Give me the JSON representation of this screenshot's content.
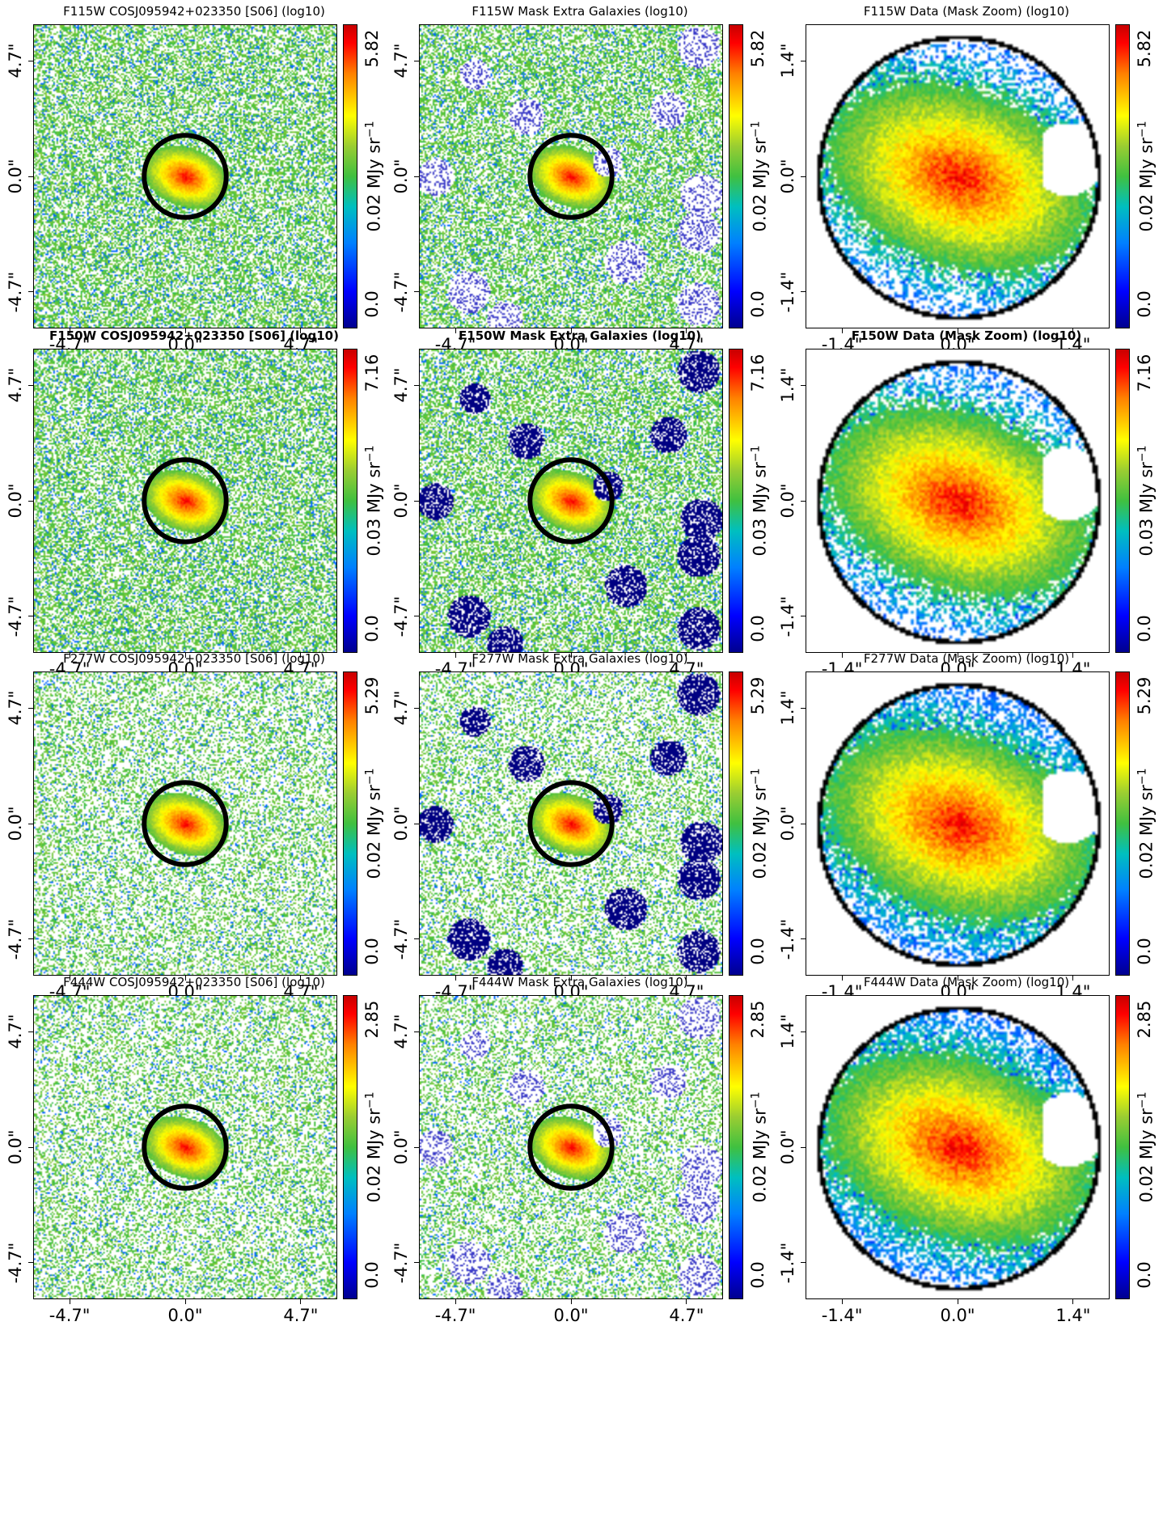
{
  "unit_label": "MJy sr",
  "unit_exponent": "−1",
  "rows": [
    {
      "band": "F115W",
      "bold": false,
      "seed": 11,
      "cbar_min": "0.0",
      "cbar_mid": "0.02",
      "cbar_max": "5.82",
      "panels": [
        {
          "title": "F115W COSJ095942+023350 [S06] (log10)",
          "ticks": [
            "-4.7\"",
            "0.0\"",
            "4.7\""
          ]
        },
        {
          "title": "F115W Mask Extra Galaxies (log10)",
          "ticks": [
            "-4.7\"",
            "0.0\"",
            "4.7\""
          ]
        },
        {
          "title": "F115W Data (Mask Zoom) (log10)",
          "ticks": [
            "-1.4\"",
            "0.0\"",
            "1.4\""
          ]
        }
      ]
    },
    {
      "band": "F150W",
      "bold": true,
      "seed": 23,
      "cbar_min": "0.0",
      "cbar_mid": "0.03",
      "cbar_max": "7.16",
      "panels": [
        {
          "title": "F150W COSJ095942+023350 [S06] (log10)",
          "ticks": [
            "-4.7\"",
            "0.0\"",
            "4.7\""
          ]
        },
        {
          "title": "F150W Mask Extra Galaxies (log10)",
          "ticks": [
            "-4.7\"",
            "0.0\"",
            "4.7\""
          ]
        },
        {
          "title": "F150W Data (Mask Zoom) (log10)",
          "ticks": [
            "-1.4\"",
            "0.0\"",
            "1.4\""
          ]
        }
      ]
    },
    {
      "band": "F277W",
      "bold": false,
      "seed": 37,
      "cbar_min": "0.0",
      "cbar_mid": "0.02",
      "cbar_max": "5.29",
      "panels": [
        {
          "title": "F277W COSJ095942+023350 [S06] (log10)",
          "ticks": [
            "-4.7\"",
            "0.0\"",
            "4.7\""
          ]
        },
        {
          "title": "F277W Mask Extra Galaxies (log10)",
          "ticks": [
            "-4.7\"",
            "0.0\"",
            "4.7\""
          ]
        },
        {
          "title": "F277W Data (Mask Zoom) (log10)",
          "ticks": [
            "-1.4\"",
            "0.0\"",
            "1.4\""
          ]
        }
      ]
    },
    {
      "band": "F444W",
      "bold": false,
      "seed": 53,
      "cbar_min": "0.0",
      "cbar_mid": "0.02",
      "cbar_max": "2.85",
      "panels": [
        {
          "title": "F444W COSJ095942+023350 [S06] (log10)",
          "ticks": [
            "-4.7\"",
            "0.0\"",
            "4.7\""
          ]
        },
        {
          "title": "F444W Mask Extra Galaxies (log10)",
          "ticks": [
            "-4.7\"",
            "0.0\"",
            "4.7\""
          ]
        },
        {
          "title": "F444W Data (Mask Zoom) (log10)",
          "ticks": [
            "-1.4\"",
            "0.0\"",
            "1.4\""
          ]
        }
      ]
    }
  ]
}
